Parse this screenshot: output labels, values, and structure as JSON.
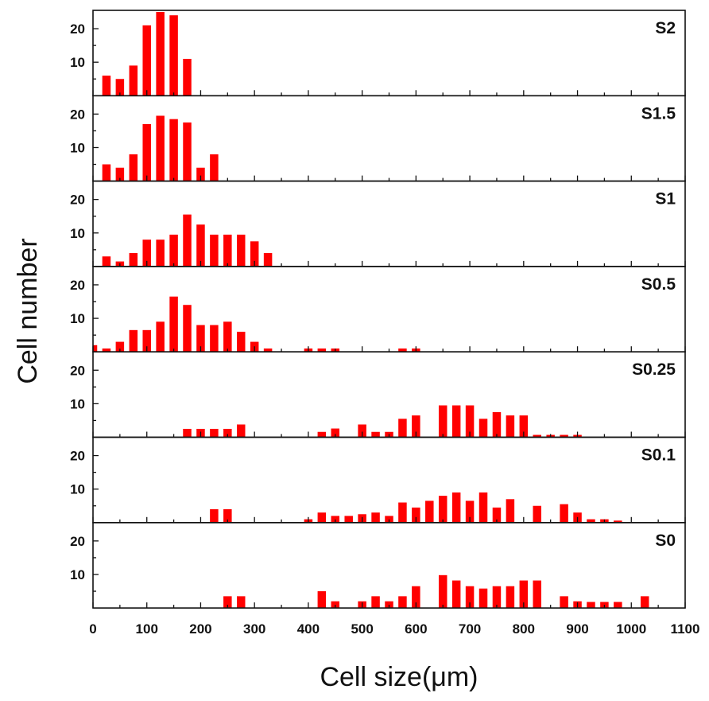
{
  "chart_data": {
    "type": "bar",
    "xlabel": "Cell size(μm)",
    "ylabel": "Cell number",
    "xlim": [
      0,
      1100
    ],
    "ylim": [
      0,
      25
    ],
    "x_ticks": [
      "0",
      "100",
      "200",
      "300",
      "400",
      "500",
      "600",
      "700",
      "800",
      "900",
      "1000",
      "1100"
    ],
    "y_ticks": [
      "10",
      "20"
    ],
    "bar_color": "#ff0000",
    "bin_width_um": 25,
    "panels": [
      {
        "label": "S2",
        "x": [
          25,
          50,
          75,
          100,
          125,
          150,
          175
        ],
        "values": [
          6,
          5,
          9,
          21,
          25,
          24,
          11
        ]
      },
      {
        "label": "S1.5",
        "x": [
          25,
          50,
          75,
          100,
          125,
          150,
          175,
          200,
          225
        ],
        "values": [
          5,
          4,
          8,
          17,
          19.5,
          18.5,
          17.5,
          4,
          8
        ]
      },
      {
        "label": "S1",
        "x": [
          25,
          50,
          75,
          100,
          125,
          150,
          175,
          200,
          225,
          250,
          275,
          300,
          325
        ],
        "values": [
          3,
          1.5,
          4,
          8,
          8,
          9.5,
          15.5,
          12.5,
          9.5,
          9.5,
          9.5,
          7.5,
          4
        ]
      },
      {
        "label": "S0.5",
        "x": [
          0,
          25,
          50,
          75,
          100,
          125,
          150,
          175,
          200,
          225,
          250,
          275,
          300,
          325,
          400,
          425,
          450,
          575,
          600
        ],
        "values": [
          2,
          1,
          3,
          6.5,
          6.5,
          9,
          16.5,
          14,
          8,
          8,
          9,
          6,
          3,
          1,
          1,
          1,
          1,
          1,
          1
        ]
      },
      {
        "label": "S0.25",
        "x": [
          175,
          200,
          225,
          250,
          275,
          425,
          450,
          500,
          525,
          550,
          575,
          600,
          650,
          675,
          700,
          725,
          750,
          775,
          800,
          825,
          850,
          875,
          900
        ],
        "values": [
          2.5,
          2.5,
          2.5,
          2.5,
          3.8,
          1.6,
          2.6,
          3.8,
          1.6,
          1.6,
          5.5,
          6.5,
          9.5,
          9.5,
          9.5,
          5.5,
          7.5,
          6.5,
          6.5,
          0.7,
          0.7,
          0.7,
          0.7
        ]
      },
      {
        "label": "S0.1",
        "x": [
          225,
          250,
          400,
          425,
          450,
          475,
          500,
          525,
          550,
          575,
          600,
          625,
          650,
          675,
          700,
          725,
          750,
          775,
          825,
          875,
          900,
          925,
          950,
          975
        ],
        "values": [
          4,
          4,
          1,
          3,
          2,
          2,
          2.5,
          3,
          2,
          6,
          4.5,
          6.5,
          8,
          9,
          6.5,
          9,
          4.5,
          7,
          5,
          5.5,
          3,
          1,
          1,
          0.6
        ]
      },
      {
        "label": "S0",
        "x": [
          250,
          275,
          425,
          450,
          500,
          525,
          550,
          575,
          600,
          650,
          675,
          700,
          725,
          750,
          775,
          800,
          825,
          875,
          900,
          925,
          950,
          975,
          1025
        ],
        "values": [
          3.5,
          3.5,
          5,
          2,
          2,
          3.5,
          2,
          3.5,
          6.5,
          9.8,
          8.2,
          6.5,
          5.8,
          6.5,
          6.5,
          8.2,
          8.2,
          3.5,
          2,
          1.8,
          1.8,
          1.8,
          3.5
        ]
      }
    ]
  }
}
